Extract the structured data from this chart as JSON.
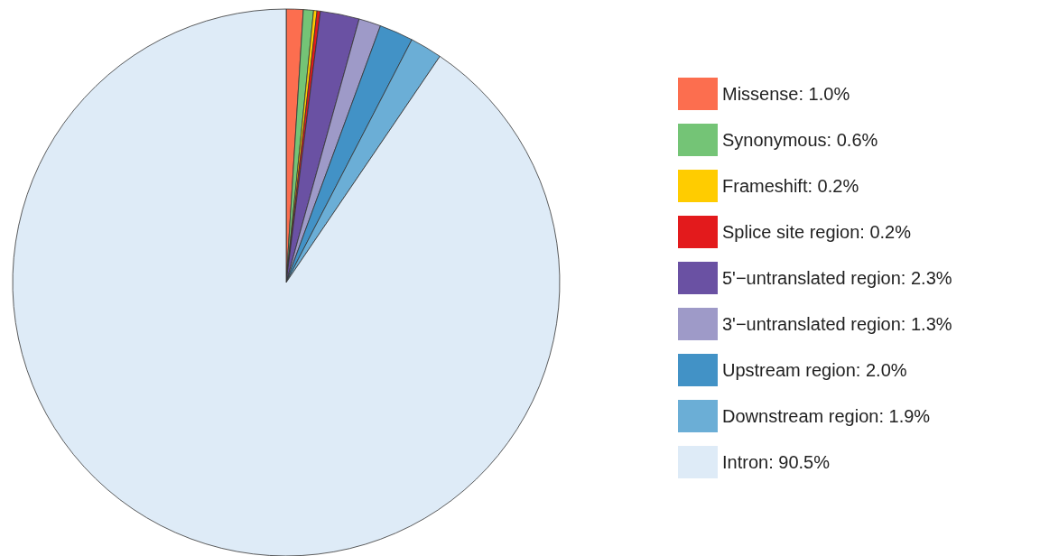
{
  "chart_data": {
    "type": "pie",
    "categories": [
      "Missense: 1.0%",
      "Synonymous: 0.6%",
      "Frameshift: 0.2%",
      "Splice site region: 0.2%",
      "5'−untranslated region: 2.3%",
      "3'−untranslated region: 1.3%",
      "Upstream region: 2.0%",
      "Downstream region: 1.9%",
      "Intron: 90.5%"
    ],
    "values": [
      1.0,
      0.6,
      0.2,
      0.2,
      2.3,
      1.3,
      2.0,
      1.9,
      90.5
    ],
    "colors": [
      "#fc6e4f",
      "#74c476",
      "#ffcc00",
      "#e31a1c",
      "#6a51a3",
      "#9e9ac8",
      "#4292c6",
      "#6baed6",
      "#deebf7"
    ],
    "legend": "right"
  }
}
